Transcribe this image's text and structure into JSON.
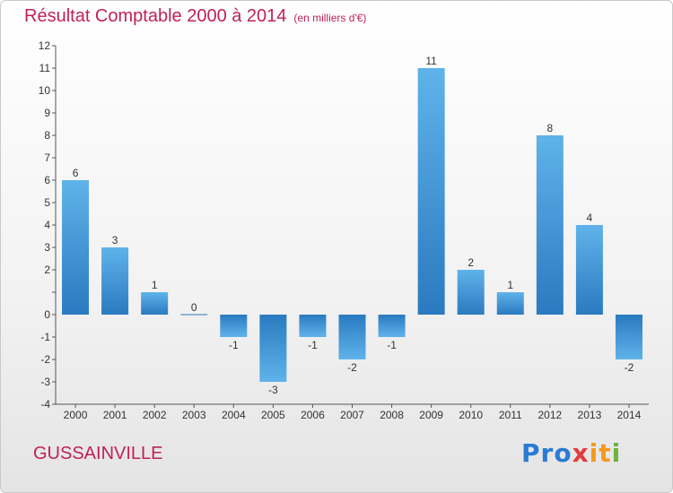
{
  "header": {
    "title": "Résultat Comptable 2000 à 2014",
    "subtitle": "(en milliers d'€)"
  },
  "footer": {
    "place": "GUSSAINVILLE",
    "brand": [
      "Pro",
      "x",
      "it",
      "i"
    ]
  },
  "colors": {
    "title": "#c0205a",
    "bar_top": "#5fb3ea",
    "bar_bottom": "#2a7ac0"
  },
  "chart_data": {
    "type": "bar",
    "title": "Résultat Comptable 2000 à 2014",
    "subtitle": "(en milliers d'€)",
    "categories": [
      "2000",
      "2001",
      "2002",
      "2003",
      "2004",
      "2005",
      "2006",
      "2007",
      "2008",
      "2009",
      "2010",
      "2011",
      "2012",
      "2013",
      "2014"
    ],
    "values": [
      6,
      3,
      1,
      0,
      -1,
      -3,
      -1,
      -2,
      -1,
      11,
      2,
      1,
      8,
      4,
      -2
    ],
    "ylim": [
      -4,
      12
    ],
    "yticks": [
      -4,
      -3,
      -2,
      -1,
      0,
      1,
      2,
      3,
      4,
      5,
      6,
      7,
      8,
      9,
      10,
      11,
      12
    ],
    "ytick_labels": [
      "-4",
      "-3",
      "-2",
      "-1",
      "0",
      "",
      "2",
      "3",
      "4",
      "5",
      "6",
      "7",
      "8",
      "9",
      "10",
      "11",
      "12"
    ],
    "grid": false,
    "legend": "none"
  }
}
